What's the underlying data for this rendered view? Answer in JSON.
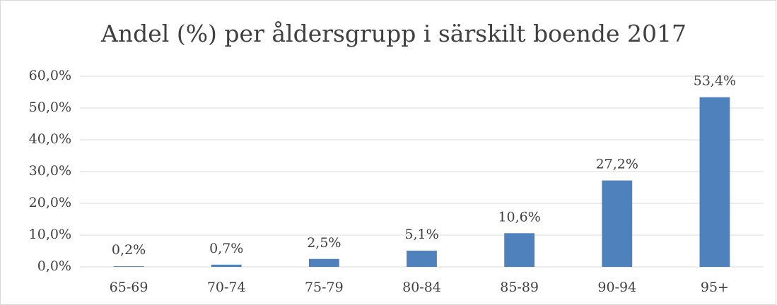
{
  "chart_data": {
    "type": "bar",
    "title": "Andel (%) per åldersgrupp i särskilt boende 2017",
    "categories": [
      "65-69",
      "70-74",
      "75-79",
      "80-84",
      "85-89",
      "90-94",
      "95+"
    ],
    "values": [
      0.2,
      0.7,
      2.5,
      5.1,
      10.6,
      27.2,
      53.4
    ],
    "value_labels": [
      "0,2%",
      "0,7%",
      "2,5%",
      "5,1%",
      "10,6%",
      "27,2%",
      "53,4%"
    ],
    "color": "#4f81bd",
    "ylim": [
      0,
      60
    ],
    "yticks": [
      {
        "value": 0,
        "label": "0,0%"
      },
      {
        "value": 10,
        "label": "10,0%"
      },
      {
        "value": 20,
        "label": "20,0%"
      },
      {
        "value": 30,
        "label": "30,0%"
      },
      {
        "value": 40,
        "label": "40,0%"
      },
      {
        "value": 50,
        "label": "50,0%"
      },
      {
        "value": 60,
        "label": "60,0%"
      }
    ],
    "grid": true
  }
}
